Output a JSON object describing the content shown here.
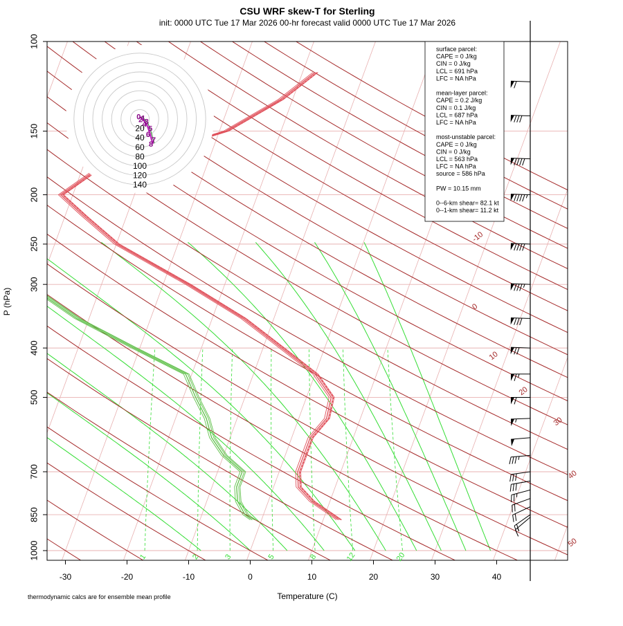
{
  "header": {
    "title": "CSU WRF skew-T for Sterling",
    "subtitle": "init: 0000 UTC Tue 17 Mar 2026    00-hr forecast valid 0000 UTC Tue 17 Mar 2026"
  },
  "footnote": "thermodynamic calcs are for ensemble mean profile",
  "info_box": {
    "lines": [
      "surface parcel:",
      "CAPE = 0 J/kg",
      "CIN = 0 J/kg",
      "LCL = 691 hPa",
      "LFC = NA hPa",
      "",
      "mean-layer parcel:",
      "CAPE = 0.2 J/kg",
      "CIN = 0.1 J/kg",
      "LCL = 687 hPa",
      "LFC = NA hPa",
      "",
      "most-unstable parcel:",
      "CAPE = 0 J/kg",
      "CIN = 0 J/kg",
      "LCL = 563 hPa",
      "LFC = NA hPa",
      "source = 586 hPa",
      "",
      "PW =  10.15 mm",
      "",
      "0--6-km shear= 82.1 kt",
      "0--1-km shear= 11.2 kt"
    ]
  },
  "hodograph": {
    "ring_labels": [
      "20",
      "40",
      "60",
      "80",
      "100",
      "120",
      "140"
    ],
    "height_labels": [
      "0",
      "1",
      "2",
      "3",
      "4",
      "5",
      "6",
      "7",
      "8"
    ],
    "u": [
      2,
      3,
      6,
      10,
      14,
      18,
      22,
      25,
      28
    ],
    "v": [
      -5,
      -2,
      1,
      5,
      10,
      20,
      32,
      44,
      53
    ]
  },
  "chart_data": {
    "type": "skew-T",
    "title": "CSU WRF skew-T for Sterling",
    "subtitle": "init: 0000 UTC Tue 17 Mar 2026    00-hr forecast valid 0000 UTC Tue 17 Mar 2026",
    "xlabel": "Temperature (C)",
    "ylabel": "P (hPa)",
    "xlim": [
      -33,
      52
    ],
    "ylim": [
      1050,
      100
    ],
    "y_scale": "log",
    "x_ticks": [
      "-30",
      "-20",
      "-10",
      "0",
      "10",
      "20",
      "30",
      "40"
    ],
    "x_tick_values": [
      -30,
      -20,
      -10,
      0,
      10,
      20,
      30,
      40
    ],
    "p_ticks": [
      "100",
      "150",
      "200",
      "250",
      "300",
      "400",
      "500",
      "700",
      "850",
      "1000"
    ],
    "p_tick_values": [
      100,
      150,
      200,
      250,
      300,
      400,
      500,
      700,
      850,
      1000
    ],
    "isotherm_labels": [
      "-10",
      "0",
      "10",
      "20",
      "30",
      "40",
      "50"
    ],
    "isotherm_label_values": [
      -10,
      0,
      10,
      20,
      30,
      40,
      50
    ],
    "mixing_ratio_labels": [
      "1",
      "2",
      "3",
      "5",
      "8",
      "12",
      "20"
    ],
    "mixing_ratio_values": [
      1,
      2,
      3,
      5,
      8,
      12,
      20
    ],
    "colors": {
      "temperature": "#e0505a",
      "dewpoint": "#5fc04a",
      "isotherm": "#e8b0b0",
      "dry_adiabat": "#a52a2a",
      "moist_adiabat": "#33dd33",
      "mixing_ratio": "#33dd33",
      "hodograph": "#c030c0"
    },
    "series": [
      {
        "p": [
          870,
          850,
          800,
          750,
          700,
          650,
          600,
          550,
          500,
          450,
          400,
          350,
          300,
          250,
          220,
          200,
          180,
          150,
          130,
          115
        ],
        "values": [
          12.5,
          11,
          7,
          4,
          3,
          3,
          3,
          4.5,
          4,
          0,
          -7,
          -15,
          -26,
          -40,
          -47,
          -52,
          -48,
          -29,
          -22,
          -18
        ]
      },
      {
        "p": [
          870,
          850,
          800,
          750,
          700,
          650,
          600,
          550,
          500,
          450,
          400,
          350,
          300,
          250,
          220,
          200,
          180
        ],
        "values": [
          -1.5,
          -3,
          -5,
          -6,
          -6,
          -10,
          -13,
          -15,
          -18,
          -21,
          -31,
          -42,
          -52,
          -58,
          -61,
          -63,
          -65
        ]
      }
    ],
    "winds": [
      {
        "p": 860,
        "speed": 15,
        "dir": 230
      },
      {
        "p": 850,
        "speed": 18,
        "dir": 235
      },
      {
        "p": 820,
        "speed": 20,
        "dir": 245
      },
      {
        "p": 790,
        "speed": 22,
        "dir": 250
      },
      {
        "p": 760,
        "speed": 25,
        "dir": 255
      },
      {
        "p": 730,
        "speed": 28,
        "dir": 260
      },
      {
        "p": 700,
        "speed": 30,
        "dir": 262
      },
      {
        "p": 650,
        "speed": 35,
        "dir": 265
      },
      {
        "p": 600,
        "speed": 50,
        "dir": 265
      },
      {
        "p": 550,
        "speed": 55,
        "dir": 268
      },
      {
        "p": 500,
        "speed": 60,
        "dir": 270
      },
      {
        "p": 450,
        "speed": 65,
        "dir": 270
      },
      {
        "p": 400,
        "speed": 70,
        "dir": 272
      },
      {
        "p": 350,
        "speed": 80,
        "dir": 272
      },
      {
        "p": 300,
        "speed": 85,
        "dir": 272
      },
      {
        "p": 250,
        "speed": 90,
        "dir": 272
      },
      {
        "p": 200,
        "speed": 95,
        "dir": 272
      },
      {
        "p": 170,
        "speed": 90,
        "dir": 272
      },
      {
        "p": 140,
        "speed": 80,
        "dir": 272
      },
      {
        "p": 120,
        "speed": 60,
        "dir": 272
      }
    ]
  }
}
